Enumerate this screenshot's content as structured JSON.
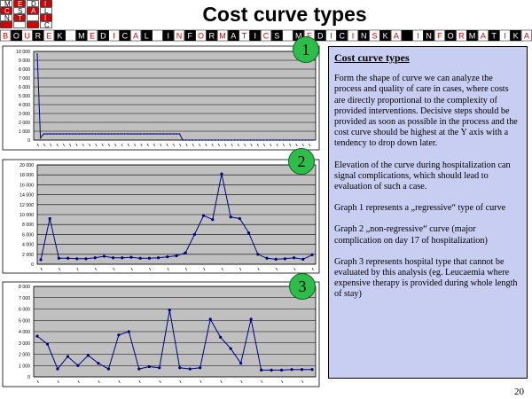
{
  "header": {
    "title": "Cost curve types",
    "logo_letters": [
      "M",
      "E",
      "D",
      "I",
      "C",
      "S",
      "A",
      "L",
      "N",
      "T",
      "",
      "I",
      "",
      "",
      "",
      "C"
    ],
    "strip_text": "BOUREK MEDICAL INFORMATICS MEDICINSKA INFORMATIKA"
  },
  "charts": [
    {
      "badge": "1",
      "ylim": [
        0,
        10000
      ],
      "ytick_values": [
        0,
        1000,
        2000,
        3000,
        4000,
        5000,
        6000,
        7000,
        8000,
        9000,
        10000
      ],
      "ytick_labels": [
        "0",
        "1 000",
        "2 000",
        "3 000",
        "4 000",
        "5 000",
        "6 000",
        "7 000",
        "8 000",
        "9 000",
        "10 000"
      ],
      "values": [
        9700,
        250,
        700,
        700,
        700,
        700,
        700,
        700,
        700,
        700,
        700,
        700,
        700,
        700,
        700,
        700,
        700,
        700,
        700,
        700,
        700,
        700,
        700,
        700,
        700,
        700,
        700,
        700,
        700,
        700,
        700,
        700,
        700,
        700,
        700,
        700,
        700,
        700,
        700,
        700,
        700,
        700,
        700,
        700,
        700,
        0,
        0,
        0,
        0,
        0,
        0,
        0,
        0,
        0,
        0,
        0,
        0,
        0,
        0,
        0,
        0,
        0,
        0,
        0,
        0,
        0,
        0,
        0,
        0,
        0,
        0,
        0,
        0,
        0,
        0,
        0,
        0,
        0,
        0,
        0,
        0,
        0,
        0,
        0,
        0,
        0
      ]
    },
    {
      "badge": "2",
      "ylim": [
        0,
        20000
      ],
      "ytick_values": [
        0,
        2000,
        4000,
        6000,
        8000,
        10000,
        12000,
        14000,
        16000,
        18000,
        20000
      ],
      "ytick_labels": [
        "0",
        "2 000",
        "4 000",
        "6 000",
        "8 000",
        "10 000",
        "12 000",
        "14 000",
        "16 000",
        "18 000",
        "20 000"
      ],
      "values": [
        900,
        9200,
        1200,
        1200,
        1100,
        1100,
        1300,
        1600,
        1300,
        1300,
        1400,
        1200,
        1200,
        1300,
        1500,
        1700,
        2300,
        6000,
        9800,
        9000,
        18200,
        9500,
        9200,
        6300,
        2000,
        1200,
        1000,
        1100,
        1300,
        1000,
        1900
      ]
    },
    {
      "badge": "3",
      "ylim": [
        0,
        8000
      ],
      "ytick_values": [
        0,
        1000,
        2000,
        3000,
        4000,
        5000,
        6000,
        7000,
        8000
      ],
      "ytick_labels": [
        "0",
        "1 000",
        "2 000",
        "3 000",
        "4 000",
        "5 000",
        "6 000",
        "7 000",
        "8 000"
      ],
      "values": [
        3600,
        2900,
        700,
        1800,
        1000,
        1900,
        1200,
        700,
        3700,
        4000,
        700,
        900,
        800,
        5900,
        800,
        700,
        800,
        5100,
        3500,
        2500,
        1200,
        5100,
        600,
        600,
        600,
        650,
        650,
        650
      ]
    }
  ],
  "panel": {
    "heading": "Cost curve types",
    "paragraphs": [
      "Form the shape of curve we can analyze the process and quality of care in cases, where costs are directly proportional to the complexity of provided interventions. Decisive steps should be provided as soon as possible in the process and the cost curve should be highest at the Y axis with a tendency to drop down later.",
      "Elevation of the curve during hospitalization can signal complications, which should lead to evaluation of such a case.",
      "Graph 1 represents a „regressive“ type of curve",
      "Graph 2 „non-regressive“ curve (major complication on day 17 of hospitalization)",
      "Graph 3 represents hospital type that cannot be evaluated by this analysis (eg. Leucaemia where expensive therapy is provided during whole length of stay)"
    ]
  },
  "page_number": "20",
  "colors": {
    "plot_bg": "#c0c0c0",
    "grid": "#000000",
    "line": "#000080",
    "panel_bg": "#c8cdf2",
    "badge": "#2ebd4a",
    "logo_red": "#d60000"
  }
}
